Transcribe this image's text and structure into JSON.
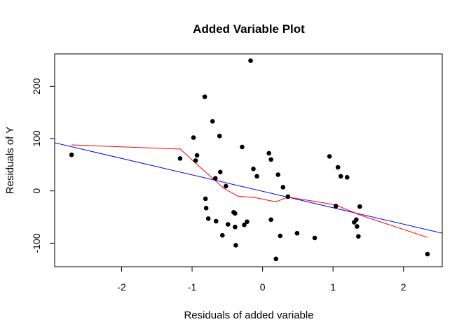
{
  "chart_data": {
    "type": "scatter",
    "title": "Added Variable Plot",
    "xlabel": "Residuals of added variable",
    "ylabel": "Residuals of Y",
    "xlim": [
      -2.95,
      2.55
    ],
    "ylim": [
      -145,
      262
    ],
    "x_ticks": [
      -2,
      -1,
      0,
      1,
      2
    ],
    "x_tick_labels": [
      "-2",
      "-1",
      "0",
      "1",
      "2"
    ],
    "y_ticks": [
      -100,
      0,
      100,
      200
    ],
    "y_tick_labels": [
      "-100",
      "0",
      "100",
      "200"
    ],
    "grid": false,
    "points": [
      {
        "x": -2.71,
        "y": 69
      },
      {
        "x": -1.17,
        "y": 62
      },
      {
        "x": -0.98,
        "y": 102
      },
      {
        "x": -0.95,
        "y": 58
      },
      {
        "x": -0.93,
        "y": 68
      },
      {
        "x": -0.82,
        "y": 180
      },
      {
        "x": -0.81,
        "y": -15
      },
      {
        "x": -0.8,
        "y": -33
      },
      {
        "x": -0.77,
        "y": -53
      },
      {
        "x": -0.71,
        "y": 133
      },
      {
        "x": -0.67,
        "y": 24
      },
      {
        "x": -0.66,
        "y": -58
      },
      {
        "x": -0.61,
        "y": 105
      },
      {
        "x": -0.6,
        "y": 36
      },
      {
        "x": -0.57,
        "y": -85
      },
      {
        "x": -0.52,
        "y": 9
      },
      {
        "x": -0.49,
        "y": -64
      },
      {
        "x": -0.41,
        "y": -41
      },
      {
        "x": -0.39,
        "y": -43
      },
      {
        "x": -0.39,
        "y": -69
      },
      {
        "x": -0.38,
        "y": -104
      },
      {
        "x": -0.29,
        "y": 84
      },
      {
        "x": -0.26,
        "y": -65
      },
      {
        "x": -0.22,
        "y": -59
      },
      {
        "x": -0.17,
        "y": 249
      },
      {
        "x": -0.13,
        "y": 42
      },
      {
        "x": -0.08,
        "y": 28
      },
      {
        "x": 0.09,
        "y": 72
      },
      {
        "x": 0.12,
        "y": 60
      },
      {
        "x": 0.12,
        "y": -55
      },
      {
        "x": 0.19,
        "y": -130
      },
      {
        "x": 0.22,
        "y": 31
      },
      {
        "x": 0.25,
        "y": -86
      },
      {
        "x": 0.29,
        "y": 7
      },
      {
        "x": 0.36,
        "y": -11
      },
      {
        "x": 0.49,
        "y": -81
      },
      {
        "x": 0.74,
        "y": -90
      },
      {
        "x": 0.95,
        "y": 66
      },
      {
        "x": 1.04,
        "y": -29
      },
      {
        "x": 1.07,
        "y": 45
      },
      {
        "x": 1.11,
        "y": 28
      },
      {
        "x": 1.2,
        "y": 26
      },
      {
        "x": 1.3,
        "y": -60
      },
      {
        "x": 1.33,
        "y": -55
      },
      {
        "x": 1.34,
        "y": -68
      },
      {
        "x": 1.36,
        "y": -87
      },
      {
        "x": 1.38,
        "y": -30
      },
      {
        "x": 2.34,
        "y": -121
      }
    ],
    "regression_line": {
      "color": "#0000ff",
      "x": [
        -2.95,
        2.55
      ],
      "y": [
        92,
        -81
      ]
    },
    "smooth_line": {
      "color": "#ff0000",
      "x": [
        -2.71,
        -1.17,
        -0.95,
        -0.55,
        -0.35,
        -0.1,
        0.19,
        0.36,
        0.74,
        1.04,
        1.38,
        2.34
      ],
      "y": [
        88,
        80,
        53,
        5,
        -10,
        -13,
        -21,
        -12,
        -20,
        -27,
        -46,
        -89
      ]
    }
  }
}
